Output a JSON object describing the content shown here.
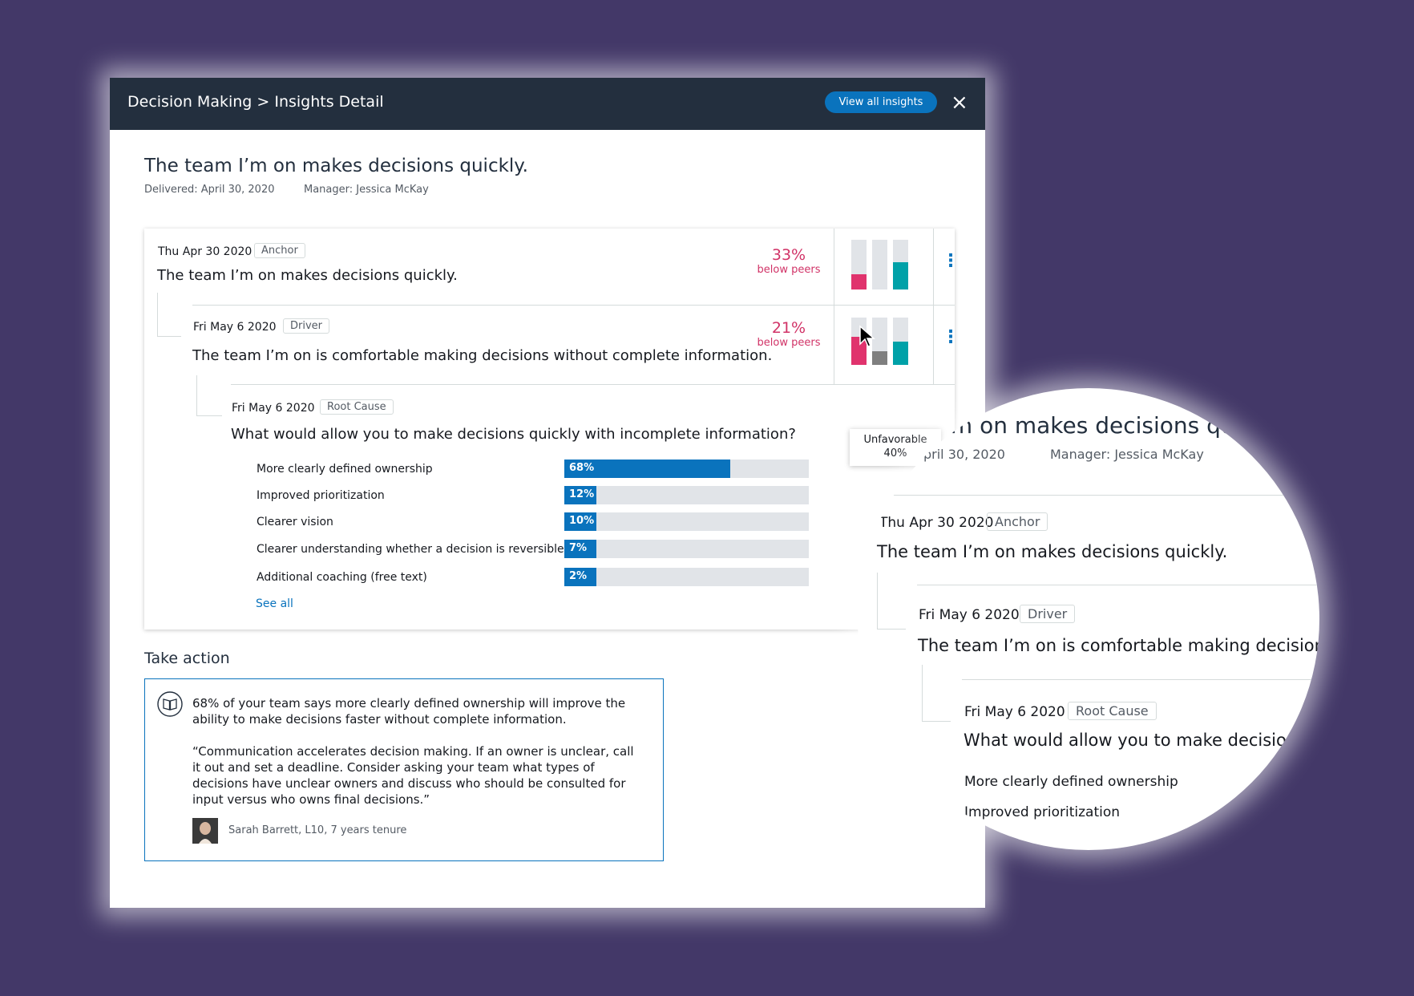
{
  "header": {
    "title": "Decision Making > Insights Detail",
    "view_all_label": "View all insights",
    "close_icon": "×"
  },
  "page": {
    "title": "The team I’m on makes decisions quickly.",
    "delivered": "Delivered: April 30, 2020",
    "manager": "Manager: Jessica McKay"
  },
  "rows": [
    {
      "date": "Thu Apr 30 2020",
      "tag": "Anchor",
      "text": "The team I’m on makes decisions quickly.",
      "pct": "33%",
      "pct_sub": "below peers",
      "mini_bars": [
        {
          "level": 0.3,
          "color": "#e0336d"
        },
        {
          "level": 0,
          "color": "#7f7f7f"
        },
        {
          "level": 0.55,
          "color": "#00a1a8"
        }
      ]
    },
    {
      "date": "Fri May 6 2020",
      "tag": "Driver",
      "text": "The team I’m on is comfortable making decisions without complete information.",
      "pct": "21%",
      "pct_sub": "below peers",
      "mini_bars": [
        {
          "level": 0.6,
          "color": "#e0336d"
        },
        {
          "level": 0.28,
          "color": "#7f7f7f"
        },
        {
          "level": 0.5,
          "color": "#00a1a8"
        }
      ]
    }
  ],
  "tooltip": {
    "label": "Unfavorable",
    "value": "40%"
  },
  "root_cause": {
    "date": "Fri May 6 2020",
    "tag": "Root Cause",
    "question": "What would allow you to make decisions quickly with incomplete information?",
    "responses": [
      {
        "label": "More clearly defined ownership",
        "pct_text": "68%",
        "pct": 0.68
      },
      {
        "label": "Improved prioritization",
        "pct_text": "12%",
        "pct": 0.12
      },
      {
        "label": "Clearer vision",
        "pct_text": "10%",
        "pct": 0.1
      },
      {
        "label": "Clearer understanding whether a decision is reversible",
        "pct_text": "7%",
        "pct": 0.07
      },
      {
        "label": "Additional coaching (free text)",
        "pct_text": "2%",
        "pct": 0.02
      }
    ],
    "see_all": "See all"
  },
  "take_action": {
    "heading": "Take action",
    "summary": "68% of your team says more clearly defined ownership will improve the ability to make decisions faster without complete information.",
    "quote": "“Communication accelerates decision making. If an owner is unclear, call it out and set a deadline. Consider asking your team what types of decisions have unclear owners and discuss who should be consulted for input versus who owns final decisions.”",
    "author": "Sarah Barrett, L10, 7 years tenure"
  },
  "magnifier": {
    "title_fragment": "’m on makes decisions qu",
    "delivered_fragment": "pril 30, 2020",
    "manager": "Manager: Jessica McKay",
    "anchor_date": "Thu Apr 30 2020",
    "anchor_tag": "Anchor",
    "anchor_text": "The team I’m on makes decisions quickly.",
    "driver_date": "Fri May 6 2020",
    "driver_tag": "Driver",
    "driver_text": "The team I’m on is comfortable making decisions wit",
    "root_date": "Fri May 6 2020",
    "root_tag": "Root Cause",
    "root_text": "What would allow you to make decisions q",
    "resp1": "More clearly defined ownership",
    "resp2": "Improved prioritization"
  },
  "colors": {
    "background": "#433868",
    "header": "#232f3e",
    "accent_blue": "#0a73bd",
    "below_peers": "#d13367",
    "unfavorable": "#e0336d",
    "neutral": "#7f7f7f",
    "favorable": "#00a1a8"
  }
}
